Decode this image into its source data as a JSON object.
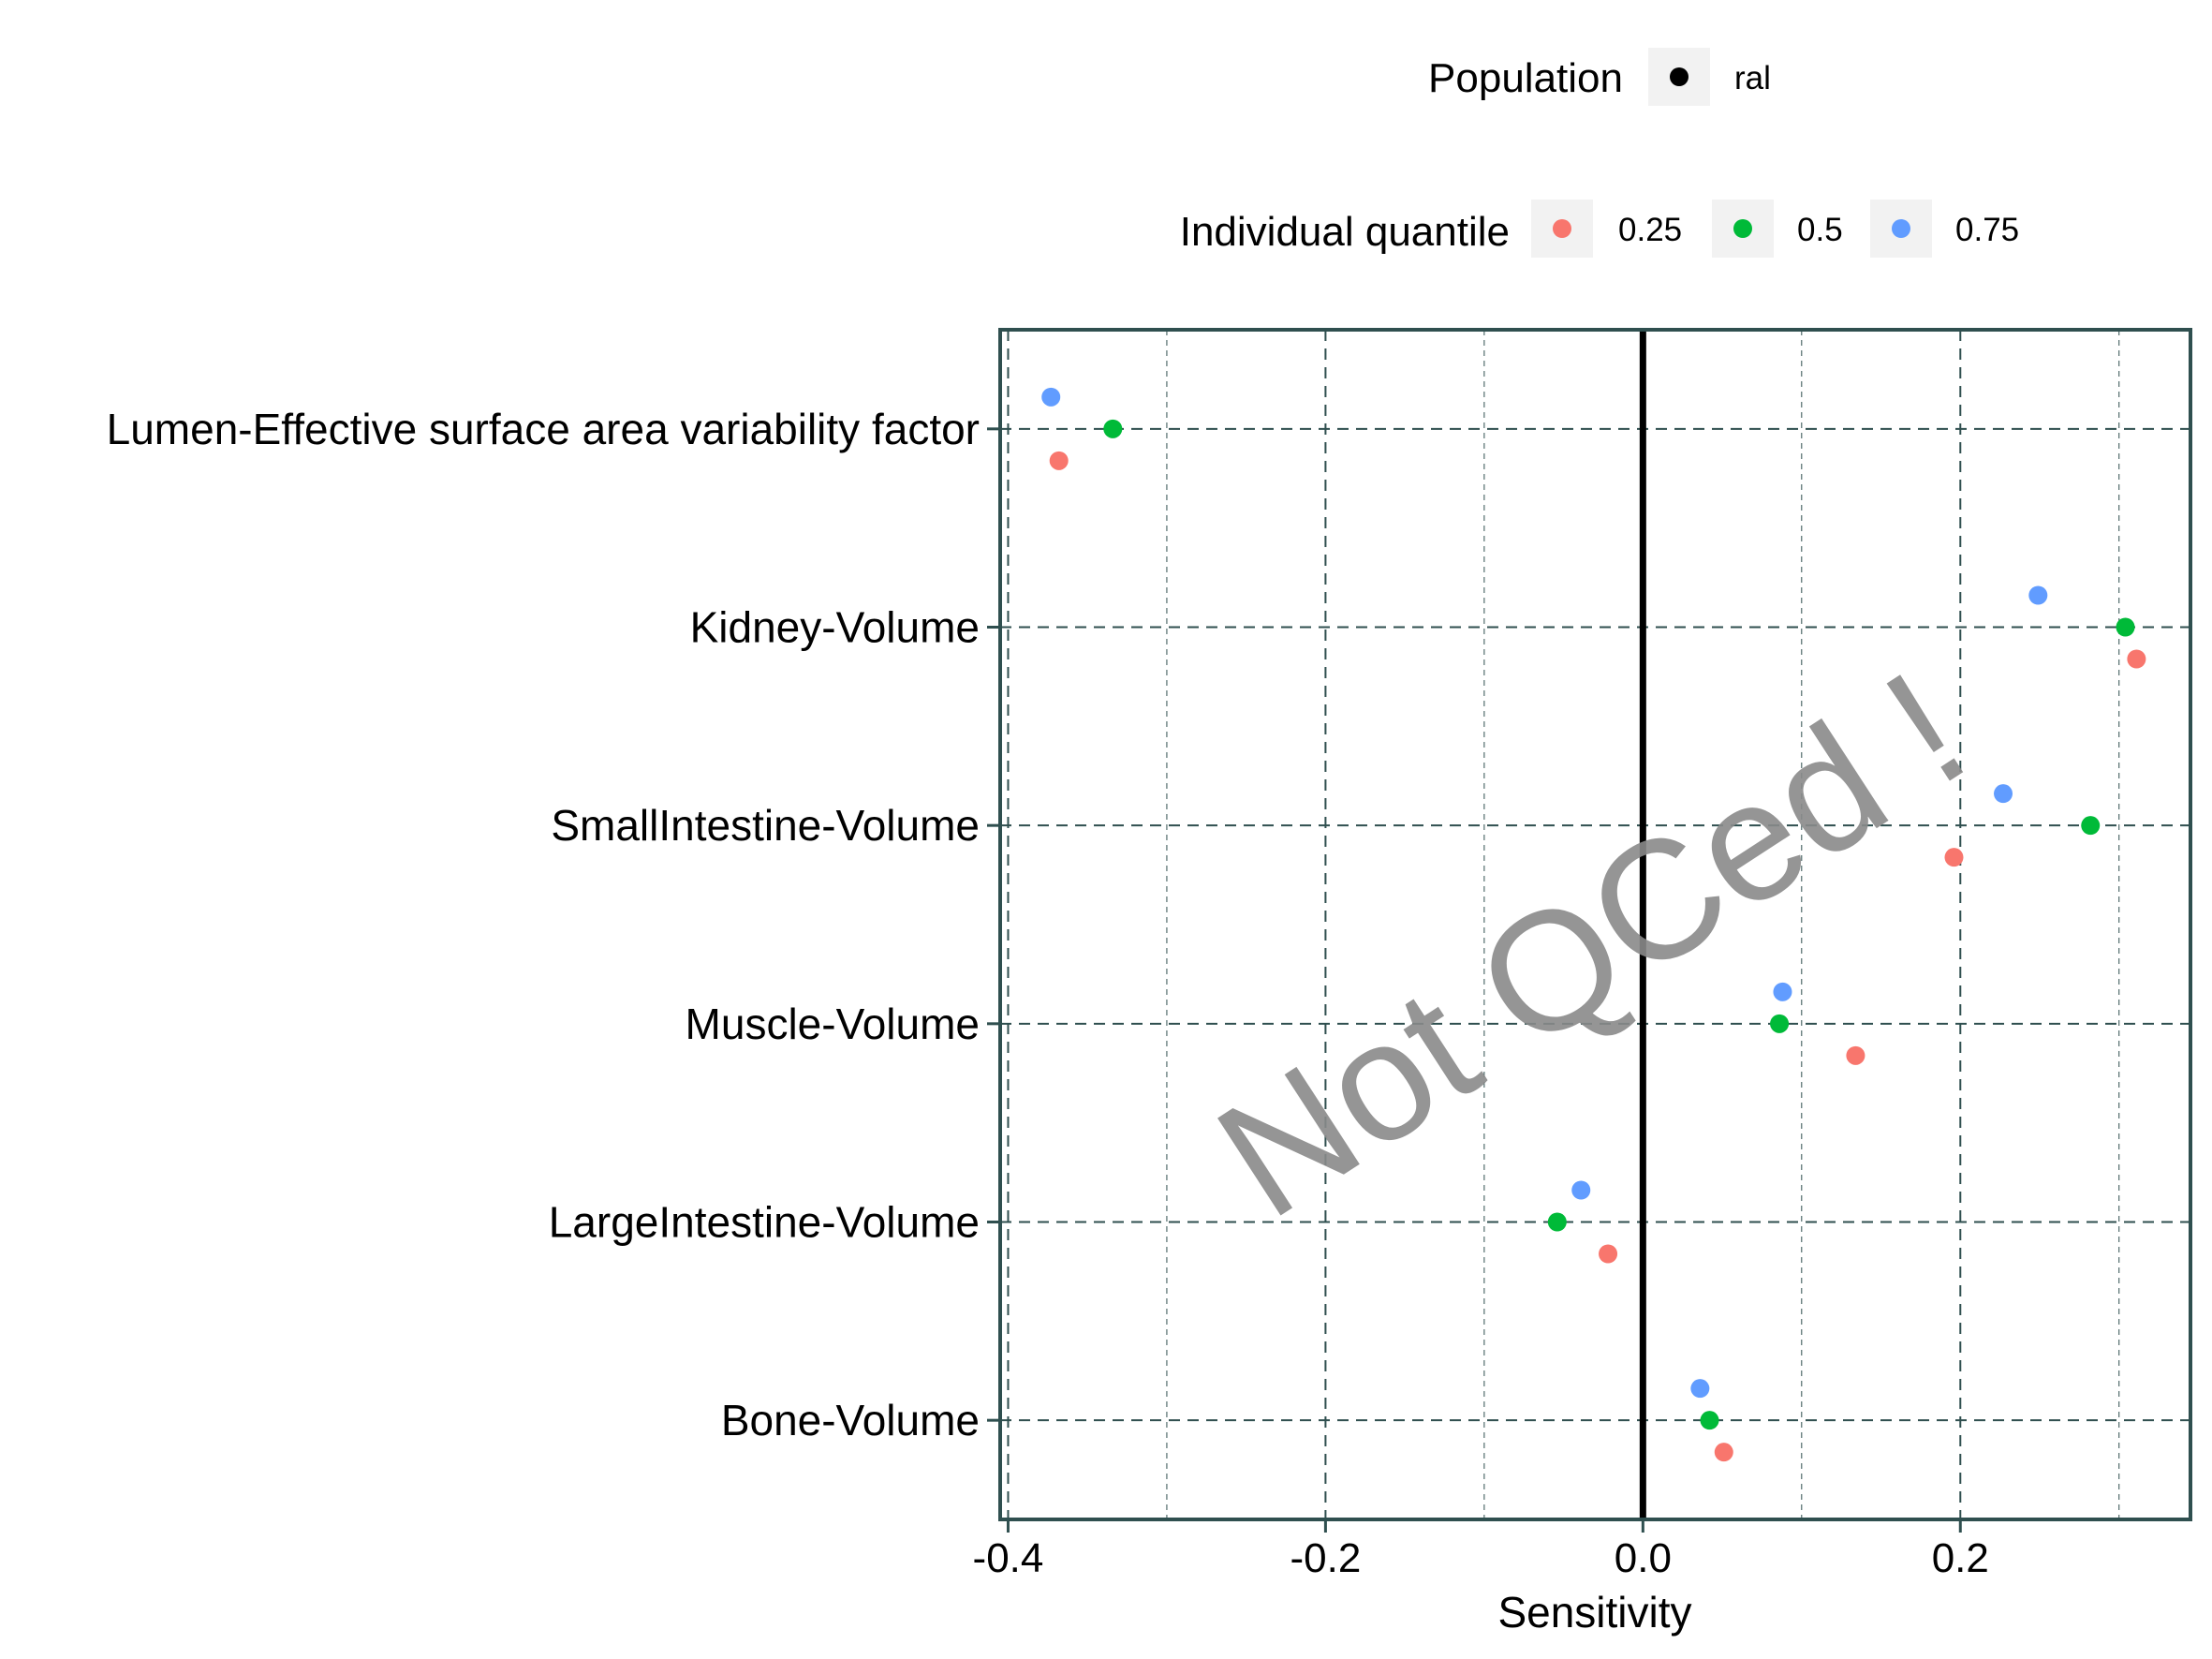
{
  "legend": {
    "population_title": "Population",
    "population_label": "ral",
    "quantile_title": "Individual quantile",
    "quantile_items": [
      {
        "label": "0.25",
        "color": "#F8766D"
      },
      {
        "label": "0.5",
        "color": "#00BA38"
      },
      {
        "label": "0.75",
        "color": "#619CFF"
      }
    ]
  },
  "watermark": "Not QCed !",
  "chart_data": {
    "type": "scatter",
    "xlabel": "Sensitivity",
    "ylabel": "",
    "xlim": [
      -0.405,
      0.345
    ],
    "x_ticks": [
      -0.4,
      -0.2,
      0.0,
      0.2
    ],
    "x_tick_labels": [
      "-0.4",
      "-0.2",
      "0.0",
      "0.2"
    ],
    "x_minor_ticks": [
      -0.3,
      -0.1,
      0.1,
      0.3
    ],
    "vline_x": 0.0,
    "grid": true,
    "categories": [
      "Lumen-Effective surface area variability factor",
      "Kidney-Volume",
      "SmallIntestine-Volume",
      "Muscle-Volume",
      "LargeIntestine-Volume",
      "Bone-Volume"
    ],
    "series": [
      {
        "name": "0.25",
        "color": "#F8766D",
        "values": [
          -0.368,
          0.311,
          0.196,
          0.134,
          -0.022,
          0.051
        ]
      },
      {
        "name": "0.5",
        "color": "#00BA38",
        "values": [
          -0.334,
          0.304,
          0.282,
          0.086,
          -0.054,
          0.042
        ]
      },
      {
        "name": "0.75",
        "color": "#619CFF",
        "values": [
          -0.373,
          0.249,
          0.227,
          0.088,
          -0.039,
          0.036
        ]
      }
    ]
  }
}
